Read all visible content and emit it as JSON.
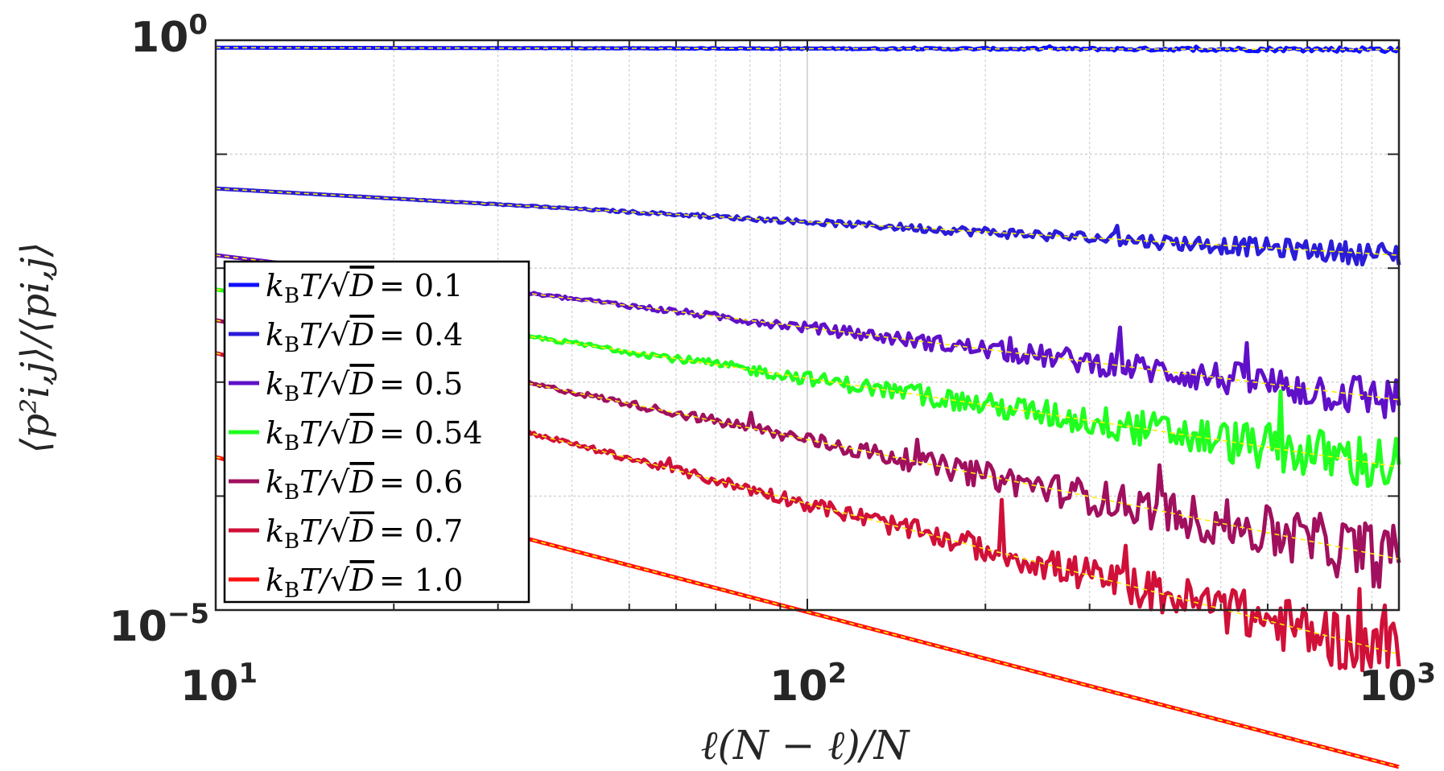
{
  "chart_data": {
    "type": "line",
    "xscale": "log",
    "yscale": "log",
    "xlim": [
      10,
      1000
    ],
    "ylim": [
      1e-05,
      1
    ],
    "xlabel": "ℓ(N − ℓ)/N",
    "ylabel": "⟨p²i,j⟩/⟨pi,j⟩",
    "x_ticks": [
      {
        "base": "10",
        "exp": "1"
      },
      {
        "base": "10",
        "exp": "2"
      },
      {
        "base": "10",
        "exp": "3"
      }
    ],
    "y_ticks": [
      {
        "base": "10",
        "exp": "0",
        "value": 1
      },
      {
        "base": "10",
        "exp": "−5",
        "value": 1e-05
      }
    ],
    "legend_position": "lower-left",
    "fit_line_color": "#ffee00",
    "series": [
      {
        "name": "kBT/√D = 0.1",
        "label_prefix": "k",
        "label_sub": "B",
        "label_mid": "T/√",
        "label_var": "D",
        "label_value": "= 0.1",
        "color": "#1010ff",
        "x": [
          10,
          1000
        ],
        "y": [
          0.86,
          0.83
        ],
        "noise_at_end": 0.04
      },
      {
        "name": "kBT/√D = 0.4",
        "label_prefix": "k",
        "label_sub": "B",
        "label_mid": "T/√",
        "label_var": "D",
        "label_value": "= 0.4",
        "color": "#2a1cd8",
        "x": [
          10,
          1000
        ],
        "y": [
          0.05,
          0.013
        ],
        "noise_at_end": 0.18
      },
      {
        "name": "kBT/√D = 0.5",
        "label_prefix": "k",
        "label_sub": "B",
        "label_mid": "T/√",
        "label_var": "D",
        "label_value": "= 0.5",
        "color": "#6010c8",
        "x": [
          10,
          1000
        ],
        "y": [
          0.013,
          0.0007
        ],
        "noise_at_end": 0.35
      },
      {
        "name": "kBT/√D = 0.54",
        "label_prefix": "k",
        "label_sub": "B",
        "label_mid": "T/√",
        "label_var": "D",
        "label_value": "= 0.54",
        "color": "#20ff20",
        "x": [
          10,
          1000
        ],
        "y": [
          0.0065,
          0.00018
        ],
        "noise_at_end": 0.45
      },
      {
        "name": "kBT/√D = 0.6",
        "label_prefix": "k",
        "label_sub": "B",
        "label_mid": "T/√",
        "label_var": "D",
        "label_value": "= 0.6",
        "color": "#a0105e",
        "x": [
          10,
          1000
        ],
        "y": [
          0.0035,
          2.8e-05
        ],
        "noise_at_end": 0.5
      },
      {
        "name": "kBT/√D = 0.7",
        "label_prefix": "k",
        "label_sub": "B",
        "label_mid": "T/√",
        "label_var": "D",
        "label_value": "= 0.7",
        "color": "#d01038",
        "x": [
          10,
          1000
        ],
        "y": [
          0.0018,
          4.1e-06
        ],
        "noise_at_end": 0.5
      },
      {
        "name": "kBT/√D = 1.0",
        "label_prefix": "k",
        "label_sub": "B",
        "label_mid": "T/√",
        "label_var": "D",
        "label_value": "= 1.0",
        "color": "#ff1010",
        "x": [
          10,
          1000
        ],
        "y": [
          0.00022,
          4.2e-07
        ],
        "noise_at_end": 0.0
      }
    ]
  }
}
